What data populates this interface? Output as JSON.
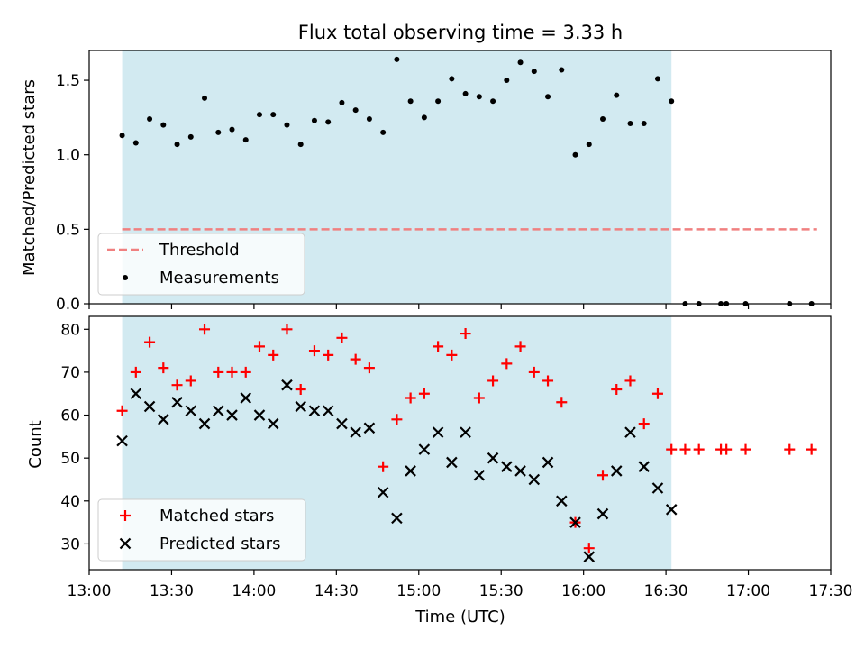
{
  "title": "Flux total observing time = 3.33 h",
  "chart_data": [
    {
      "type": "scatter",
      "ylabel": "Matched/Predicted stars",
      "xlabel": "",
      "x_axis": "time",
      "xlim": [
        "13:00",
        "17:30"
      ],
      "ylim": [
        0,
        1.7
      ],
      "yticks": [
        0.0,
        0.5,
        1.0,
        1.5
      ],
      "ytick_labels": [
        "0.0",
        "0.5",
        "1.0",
        "1.5"
      ],
      "shaded_span": [
        "13:12",
        "16:32"
      ],
      "shade_color": "#add8e6",
      "legend_loc": "lower left",
      "legend": [
        "Threshold",
        "Measurements"
      ],
      "threshold": {
        "name": "Threshold",
        "y": 0.5,
        "x_range": [
          "13:12",
          "17:25"
        ],
        "color": "#f08080",
        "style": "dashed"
      },
      "series": [
        {
          "name": "Measurements",
          "marker": "dot",
          "color": "#000000",
          "x": [
            "13:12",
            "13:17",
            "13:22",
            "13:27",
            "13:32",
            "13:37",
            "13:42",
            "13:47",
            "13:52",
            "13:57",
            "14:02",
            "14:07",
            "14:12",
            "14:17",
            "14:22",
            "14:27",
            "14:32",
            "14:37",
            "14:42",
            "14:47",
            "14:52",
            "14:57",
            "15:02",
            "15:07",
            "15:12",
            "15:17",
            "15:22",
            "15:27",
            "15:32",
            "15:37",
            "15:42",
            "15:47",
            "15:52",
            "15:57",
            "16:02",
            "16:07",
            "16:12",
            "16:17",
            "16:22",
            "16:27",
            "16:32",
            "16:37",
            "16:42",
            "16:50",
            "16:52",
            "16:59",
            "17:15",
            "17:23"
          ],
          "y": [
            1.13,
            1.08,
            1.24,
            1.2,
            1.07,
            1.12,
            1.38,
            1.15,
            1.17,
            1.1,
            1.27,
            1.27,
            1.2,
            1.07,
            1.23,
            1.22,
            1.35,
            1.3,
            1.24,
            1.15,
            1.64,
            1.36,
            1.25,
            1.36,
            1.51,
            1.41,
            1.39,
            1.36,
            1.5,
            1.62,
            1.56,
            1.39,
            1.57,
            1.0,
            1.07,
            1.24,
            1.4,
            1.21,
            1.21,
            1.51,
            1.36,
            0.0,
            0.0,
            0.0,
            0.0,
            0.0,
            0.0,
            0.0
          ]
        }
      ]
    },
    {
      "type": "scatter",
      "ylabel": "Count",
      "xlabel": "Time (UTC)",
      "x_axis": "time",
      "xlim": [
        "13:00",
        "17:30"
      ],
      "ylim": [
        24,
        83
      ],
      "yticks": [
        30,
        40,
        50,
        60,
        70,
        80
      ],
      "ytick_labels": [
        "30",
        "40",
        "50",
        "60",
        "70",
        "80"
      ],
      "xticks": [
        "13:00",
        "13:30",
        "14:00",
        "14:30",
        "15:00",
        "15:30",
        "16:00",
        "16:30",
        "17:00",
        "17:30"
      ],
      "shaded_span": [
        "13:12",
        "16:32"
      ],
      "shade_color": "#add8e6",
      "legend_loc": "lower left",
      "legend": [
        "Matched stars",
        "Predicted stars"
      ],
      "series": [
        {
          "name": "Matched stars",
          "marker": "plus",
          "color": "#ff0000",
          "x": [
            "13:12",
            "13:17",
            "13:22",
            "13:27",
            "13:32",
            "13:37",
            "13:42",
            "13:47",
            "13:52",
            "13:57",
            "14:02",
            "14:07",
            "14:12",
            "14:17",
            "14:22",
            "14:27",
            "14:32",
            "14:37",
            "14:42",
            "14:47",
            "14:52",
            "14:57",
            "15:02",
            "15:07",
            "15:12",
            "15:17",
            "15:22",
            "15:27",
            "15:32",
            "15:37",
            "15:42",
            "15:47",
            "15:52",
            "15:57",
            "16:02",
            "16:07",
            "16:12",
            "16:17",
            "16:22",
            "16:27",
            "16:32",
            "16:37",
            "16:42",
            "16:50",
            "16:52",
            "16:59",
            "17:15",
            "17:23"
          ],
          "y": [
            61,
            70,
            77,
            71,
            67,
            68,
            80,
            70,
            70,
            70,
            76,
            74,
            80,
            66,
            75,
            74,
            78,
            73,
            71,
            48,
            59,
            64,
            65,
            76,
            74,
            79,
            64,
            68,
            72,
            76,
            70,
            68,
            63,
            35,
            29,
            46,
            66,
            68,
            58,
            65,
            52,
            52,
            52,
            52,
            52,
            52,
            52,
            52
          ]
        },
        {
          "name": "Predicted stars",
          "marker": "x",
          "color": "#000000",
          "x": [
            "13:12",
            "13:17",
            "13:22",
            "13:27",
            "13:32",
            "13:37",
            "13:42",
            "13:47",
            "13:52",
            "13:57",
            "14:02",
            "14:07",
            "14:12",
            "14:17",
            "14:22",
            "14:27",
            "14:32",
            "14:37",
            "14:42",
            "14:47",
            "14:52",
            "14:57",
            "15:02",
            "15:07",
            "15:12",
            "15:17",
            "15:22",
            "15:27",
            "15:32",
            "15:37",
            "15:42",
            "15:47",
            "15:52",
            "15:57",
            "16:02",
            "16:07",
            "16:12",
            "16:17",
            "16:22",
            "16:27",
            "16:32"
          ],
          "y": [
            54,
            65,
            62,
            59,
            63,
            61,
            58,
            61,
            60,
            64,
            60,
            58,
            67,
            62,
            61,
            61,
            58,
            56,
            57,
            42,
            36,
            47,
            52,
            56,
            49,
            56,
            46,
            50,
            48,
            47,
            45,
            49,
            40,
            35,
            27,
            37,
            47,
            56,
            48,
            43,
            38
          ]
        }
      ]
    }
  ]
}
